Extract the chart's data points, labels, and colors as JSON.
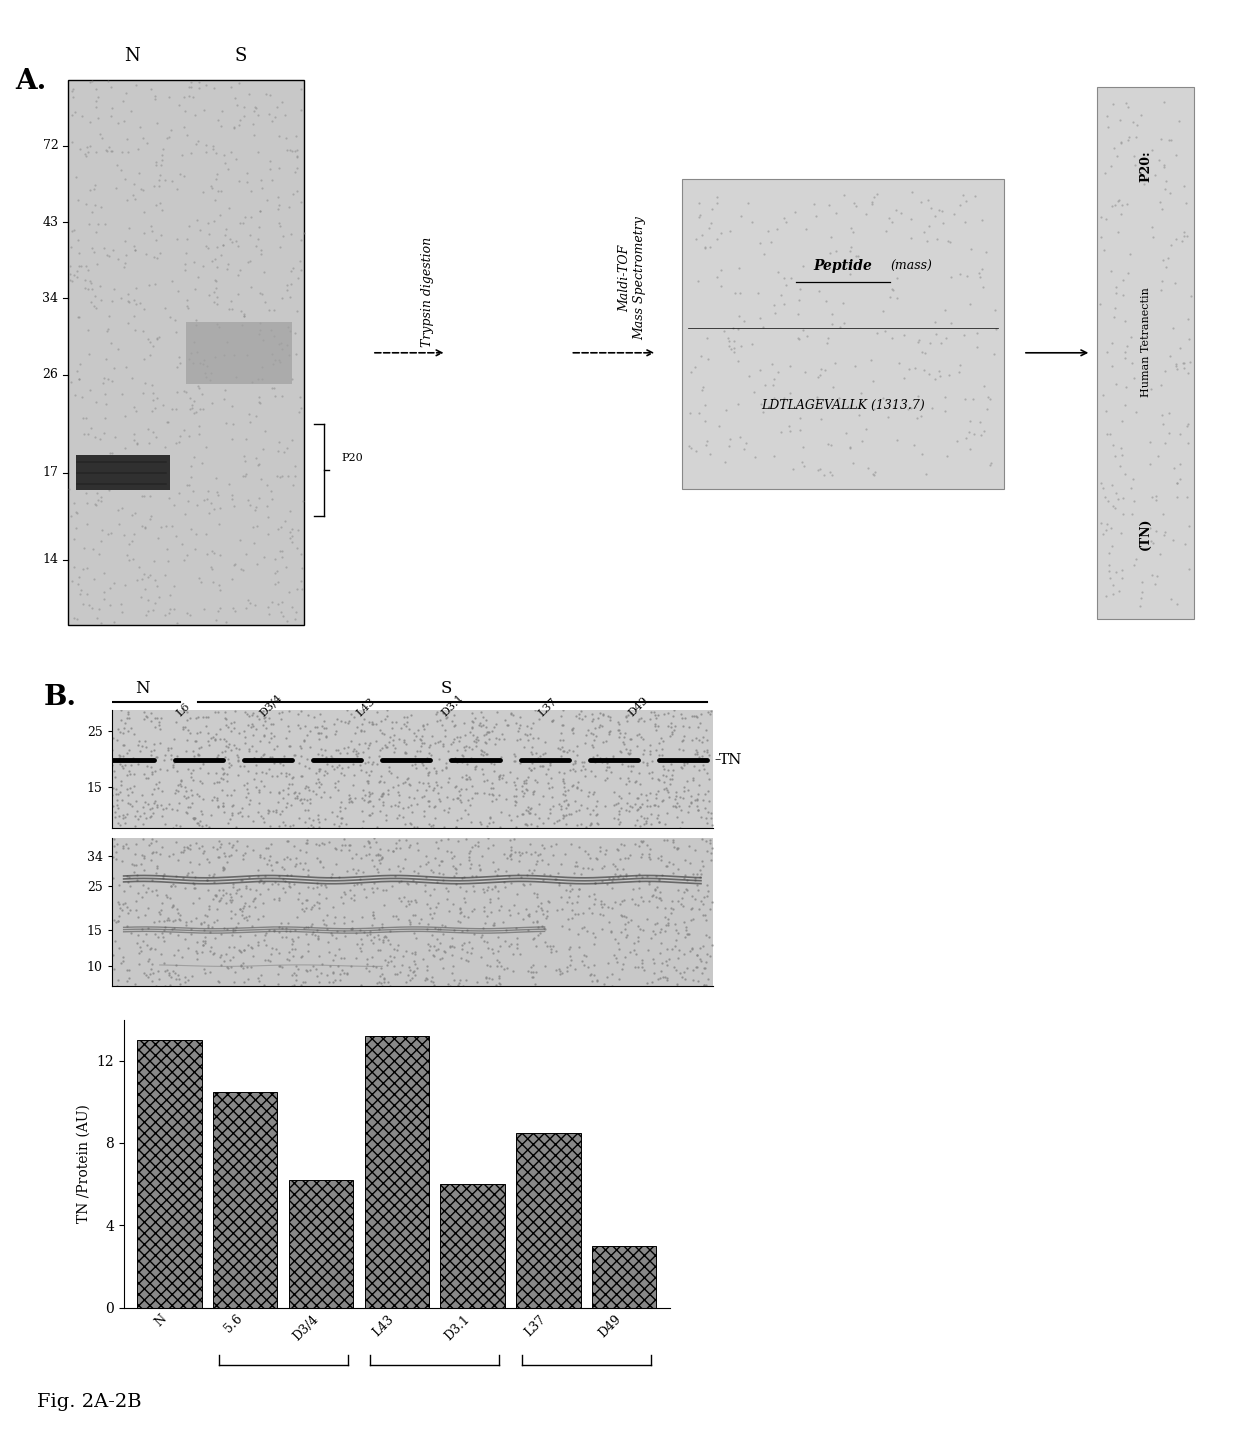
{
  "panel_A": {
    "title": "A.",
    "gel_labels_top": [
      "N",
      "S"
    ],
    "gel_mw_markers": [
      "72",
      "43",
      "34",
      "26",
      "17",
      "14"
    ],
    "gel_mw_positions": [
      0.88,
      0.74,
      0.6,
      0.46,
      0.28,
      0.12
    ],
    "p20_label": "P20",
    "arrow1_label": "Trypsin digestion",
    "arrow2_label": "Maldi-TOF\nMass Spectrometry",
    "box_peptide_header": "Peptide   (mass)",
    "box_peptide_seq": "LDTLAGEVALLK (1313.7)",
    "result_label_1": "P20:",
    "result_label_2": "Human Tetranectin",
    "result_label_3": "(TN)"
  },
  "panel_B": {
    "title": "B.",
    "N_label": "N",
    "S_label": "S",
    "lane_labels": [
      "L6",
      "D3/4",
      "L43",
      "D3.1",
      "L37",
      "D49"
    ],
    "wb1_mw_labels": [
      "25",
      "15"
    ],
    "wb2_mw_labels": [
      "34",
      "25",
      "15",
      "10"
    ],
    "bar_labels": [
      "N",
      "5.6",
      "D3/4",
      "L43",
      "D3.1",
      "L37",
      "D49"
    ],
    "bar_values": [
      13.0,
      10.5,
      6.2,
      13.2,
      6.0,
      8.5,
      3.0
    ],
    "ylabel": "TN /Protein (AU)",
    "yticks": [
      0,
      4,
      8,
      12
    ]
  },
  "figure_label": "Fig. 2A-2B",
  "bg_color": "#ffffff"
}
